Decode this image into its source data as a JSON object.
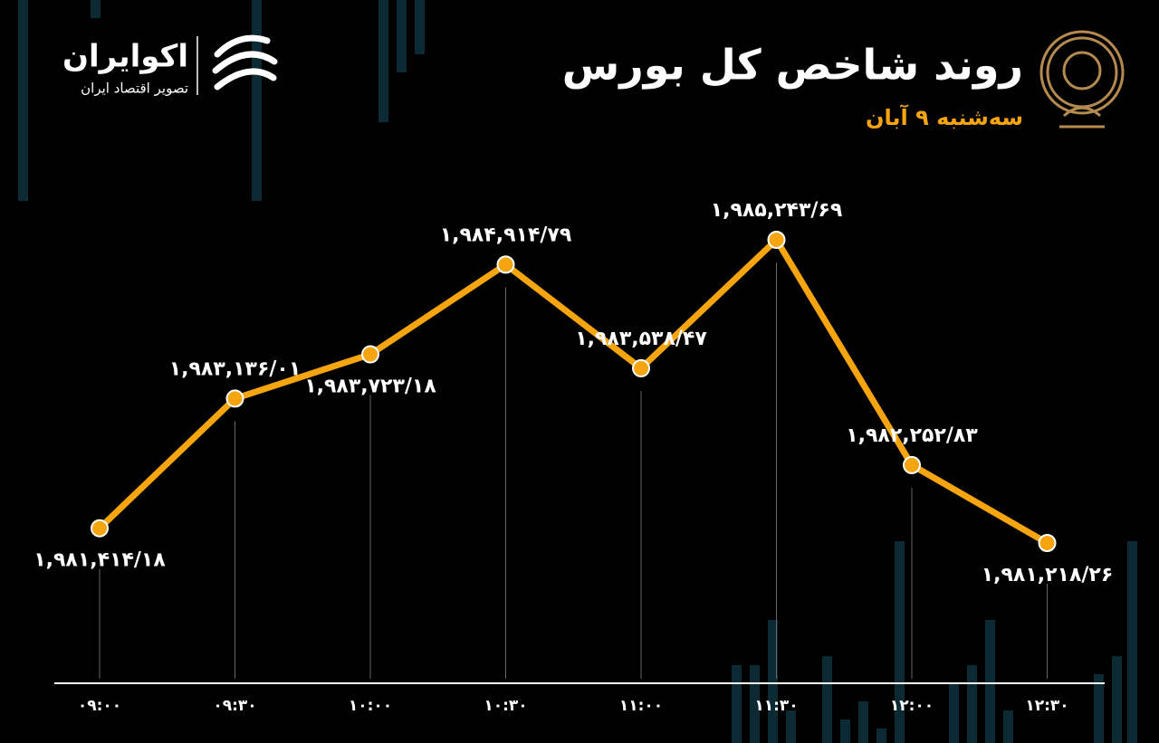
{
  "chart_data": {
    "type": "line",
    "title": "روند شاخص کل بورس",
    "subtitle": "سه‌شنبه ۹ آبان",
    "brand_name": "اکوایران",
    "brand_tagline": "تصویر اقتصاد ایران",
    "categories": [
      "۰۹:۰۰",
      "۰۹:۳۰",
      "۱۰:۰۰",
      "۱۰:۳۰",
      "۱۱:۰۰",
      "۱۱:۳۰",
      "۱۲:۰۰",
      "۱۲:۳۰"
    ],
    "series": [
      {
        "color": "#f7a50f",
        "values": [
          1981414.18,
          1983136.01,
          1983723.18,
          1984914.79,
          1983538.47,
          1985243.69,
          1982252.83,
          1981218.26
        ],
        "value_labels": [
          "۱,۹۸۱,۴۱۴/۱۸",
          "۱,۹۸۳,۱۳۶/۰۱",
          "۱,۹۸۳,۷۲۳/۱۸",
          "۱,۹۸۴,۹۱۴/۷۹",
          "۱,۹۸۳,۵۳۸/۴۷",
          "۱,۹۸۵,۲۴۳/۶۹",
          "۱,۹۸۲,۲۵۲/۸۳",
          "۱,۹۸۱,۲۱۸/۲۶"
        ]
      }
    ]
  }
}
